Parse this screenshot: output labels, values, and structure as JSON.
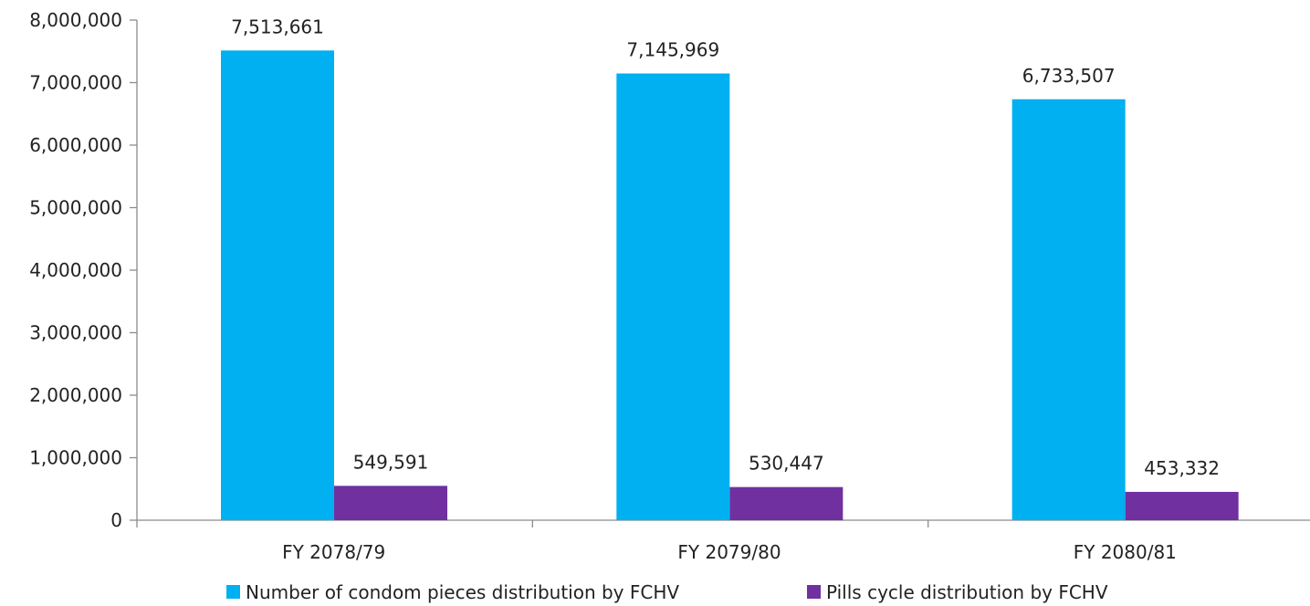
{
  "chart_data": {
    "type": "bar",
    "categories": [
      "FY 2078/79",
      "FY 2079/80",
      "FY 2080/81"
    ],
    "series": [
      {
        "name": "Number of condom pieces distribution by FCHV",
        "values": [
          7513661,
          7145969,
          6733507
        ],
        "labels": [
          "7,513,661",
          "7,145,969",
          "6,733,507"
        ],
        "color": "#00b0f0"
      },
      {
        "name": "Pills cycle distribution by FCHV",
        "values": [
          549591,
          530447,
          453332
        ],
        "labels": [
          "549,591",
          "530,447",
          "453,332"
        ],
        "color": "#7030a0"
      }
    ],
    "ylim": [
      0,
      8000000
    ],
    "yticks": [
      0,
      1000000,
      2000000,
      3000000,
      4000000,
      5000000,
      6000000,
      7000000,
      8000000
    ],
    "ytick_labels": [
      "0",
      "1,000,000",
      "2,000,000",
      "3,000,000",
      "4,000,000",
      "5,000,000",
      "6,000,000",
      "7,000,000",
      "8,000,000"
    ],
    "grid": false,
    "legend_position": "bottom"
  }
}
